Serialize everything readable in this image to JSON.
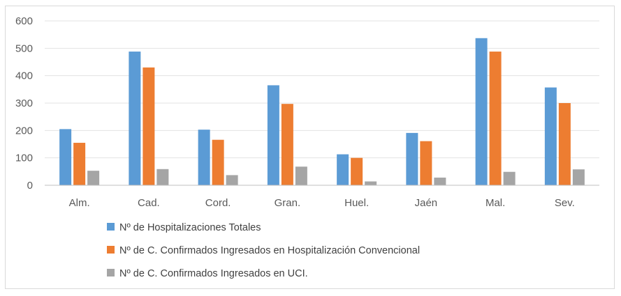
{
  "chart_data": {
    "type": "bar",
    "categories": [
      "Alm.",
      "Cad.",
      "Cord.",
      "Gran.",
      "Huel.",
      "Jaén",
      "Mal.",
      "Sev."
    ],
    "series": [
      {
        "name": "Nº de Hospitalizaciones Totales",
        "color": "#5B9BD5",
        "values": [
          205,
          488,
          203,
          365,
          113,
          191,
          537,
          357
        ]
      },
      {
        "name": "Nº de C. Confirmados Ingresados en Hospitalización Convencional",
        "color": "#ED7D31",
        "values": [
          155,
          430,
          166,
          297,
          100,
          161,
          488,
          300
        ]
      },
      {
        "name": "Nº de C. Confirmados Ingresados en UCI.",
        "color": "#A5A5A5",
        "values": [
          53,
          59,
          37,
          68,
          14,
          28,
          49,
          58
        ]
      }
    ],
    "yticks": [
      0,
      100,
      200,
      300,
      400,
      500,
      600
    ],
    "ylim": [
      0,
      600
    ],
    "grid": true,
    "legend": "bottom-left"
  }
}
